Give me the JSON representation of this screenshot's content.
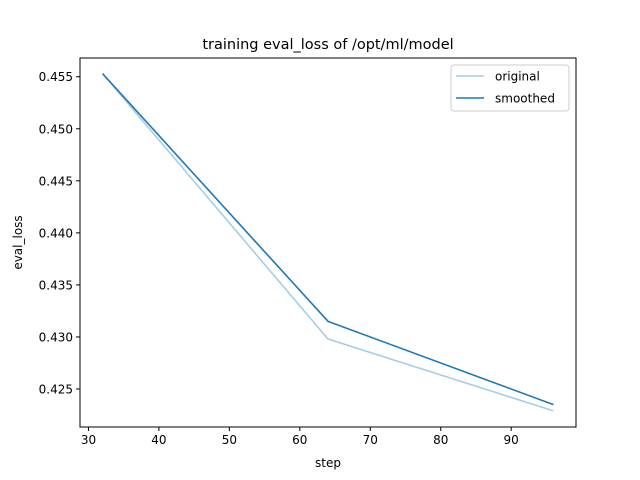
{
  "chart_data": {
    "type": "line",
    "title": "training eval_loss of /opt/ml/model",
    "xlabel": "step",
    "ylabel": "eval_loss",
    "xlim": [
      28.8,
      99.2
    ],
    "ylim": [
      0.42135,
      0.4568
    ],
    "xticks": [
      30,
      40,
      50,
      60,
      70,
      80,
      90
    ],
    "yticks": [
      0.425,
      0.43,
      0.435,
      0.44,
      0.445,
      0.45,
      0.455
    ],
    "grid": false,
    "legend_position": "top-right",
    "series": [
      {
        "name": "original",
        "color": "#a6cee3",
        "x": [
          32,
          64,
          96
        ],
        "y": [
          0.4553,
          0.4298,
          0.4229
        ]
      },
      {
        "name": "smoothed",
        "color": "#1f78b4",
        "x": [
          32,
          64,
          96
        ],
        "y": [
          0.4553,
          0.4315,
          0.4235
        ]
      }
    ]
  }
}
